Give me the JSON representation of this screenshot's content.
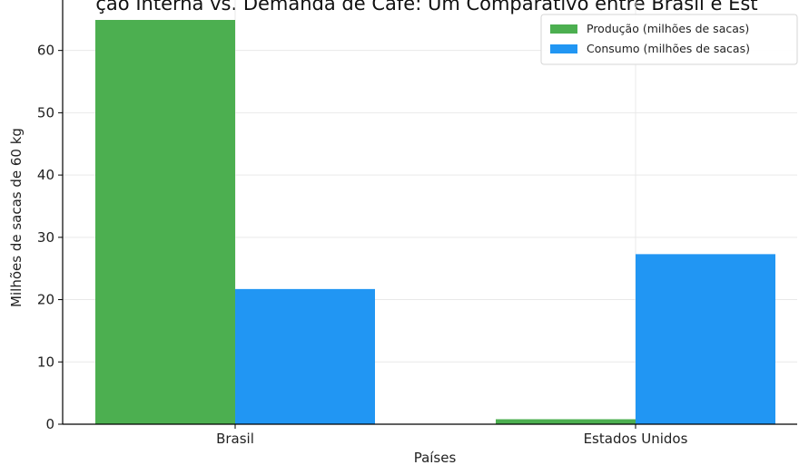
{
  "chart_data": {
    "type": "bar",
    "title": "ção Interna vs. Demanda de Café: Um Comparativo entre Brasil e Est",
    "xlabel": "Países",
    "ylabel": "Milhões de sacas de 60 kg",
    "categories": [
      "Brasil",
      "Estados Unidos"
    ],
    "series": [
      {
        "name": "Produção (milhões de sacas)",
        "values": [
          64.9,
          0.8
        ],
        "color": "#4caf50"
      },
      {
        "name": "Consumo (milhões de sacas)",
        "values": [
          21.7,
          27.3
        ],
        "color": "#2196f3"
      }
    ],
    "ylim": [
      0,
      68.1
    ],
    "yticks": [
      0,
      10,
      20,
      30,
      40,
      50,
      60
    ],
    "grid": true,
    "legend_position": "top-right"
  }
}
